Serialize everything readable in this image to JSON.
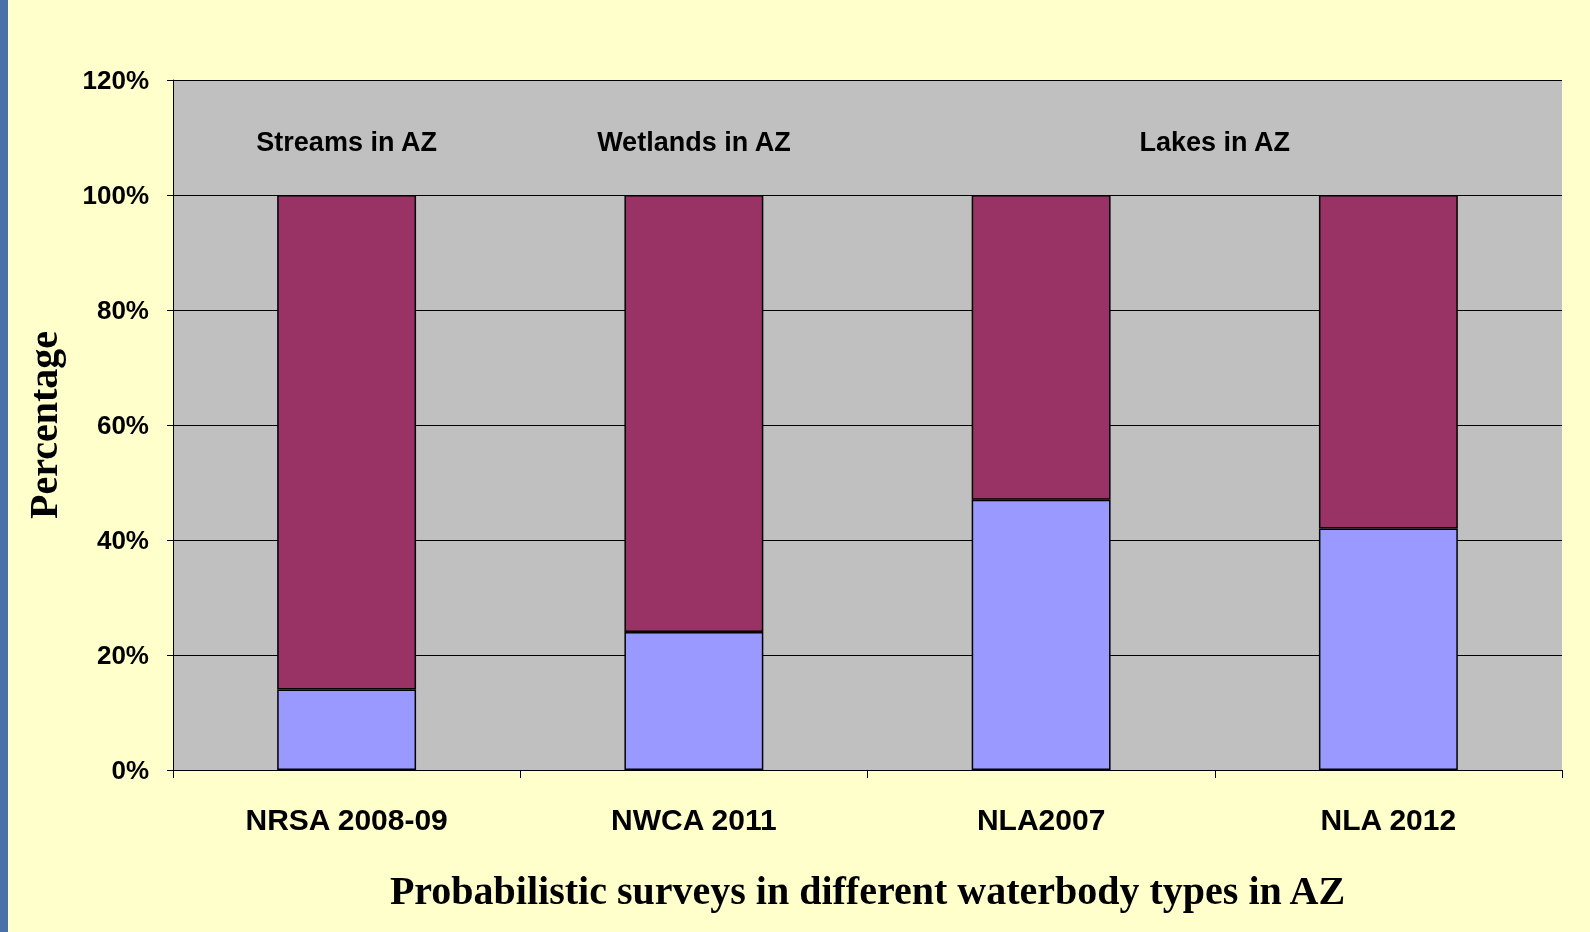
{
  "chart_data": {
    "type": "bar",
    "stacked": true,
    "xlabel": "Probabilistic surveys in different waterbody types in AZ",
    "ylabel": "Percentage",
    "categories": [
      "NRSA 2008-09",
      "NWCA 2011",
      "NLA2007",
      "NLA 2012"
    ],
    "series": [
      {
        "color": "#9999ff",
        "values": [
          14,
          24,
          47,
          42
        ]
      },
      {
        "color": "#993366",
        "values": [
          86,
          76,
          53,
          58
        ]
      }
    ],
    "ylim": [
      0,
      120
    ],
    "yticks": [
      {
        "value": 0,
        "label": "0%"
      },
      {
        "value": 20,
        "label": "20%"
      },
      {
        "value": 40,
        "label": "40%"
      },
      {
        "value": 60,
        "label": "60%"
      },
      {
        "value": 80,
        "label": "80%"
      },
      {
        "value": 100,
        "label": "100%"
      },
      {
        "value": 120,
        "label": "120%"
      }
    ],
    "grid": "y",
    "annotations": [
      "Streams in AZ",
      "Wetlands in AZ",
      "Lakes in AZ"
    ]
  }
}
